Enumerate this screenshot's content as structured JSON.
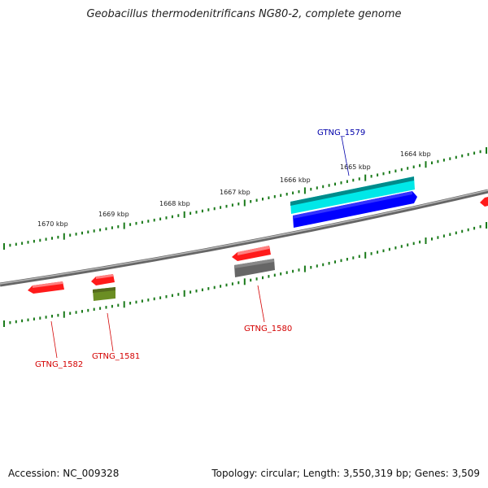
{
  "header": {
    "title": "Geobacillus thermodenitrificans NG80-2, complete genome"
  },
  "footer": {
    "accession": "Accession: NC_009328",
    "topology": "Topology: circular; Length: 3,550,319 bp; Genes: 3,509"
  },
  "colors": {
    "backbone": "#888888",
    "ticks": "#1a7a1a",
    "red_gene": "#ff0000",
    "gray_gene": "#666666",
    "olive_gene": "#6b8e23",
    "cyan_gene": "#00e5e5",
    "blue_gene": "#0000ff",
    "red_label": "#d40000",
    "blue_label": "#0000aa"
  },
  "scale": {
    "kbp_labels": [
      "1670 kbp",
      "1669 kbp",
      "1668 kbp",
      "1667 kbp",
      "1666 kbp",
      "1665 kbp",
      "1664 kbp"
    ]
  },
  "genes": [
    {
      "name": "GTNG_1582",
      "color": "red"
    },
    {
      "name": "GTNG_1581",
      "color": "red"
    },
    {
      "name": "GTNG_1580",
      "color": "red"
    },
    {
      "name": "GTNG_1579",
      "color": "blue"
    }
  ]
}
